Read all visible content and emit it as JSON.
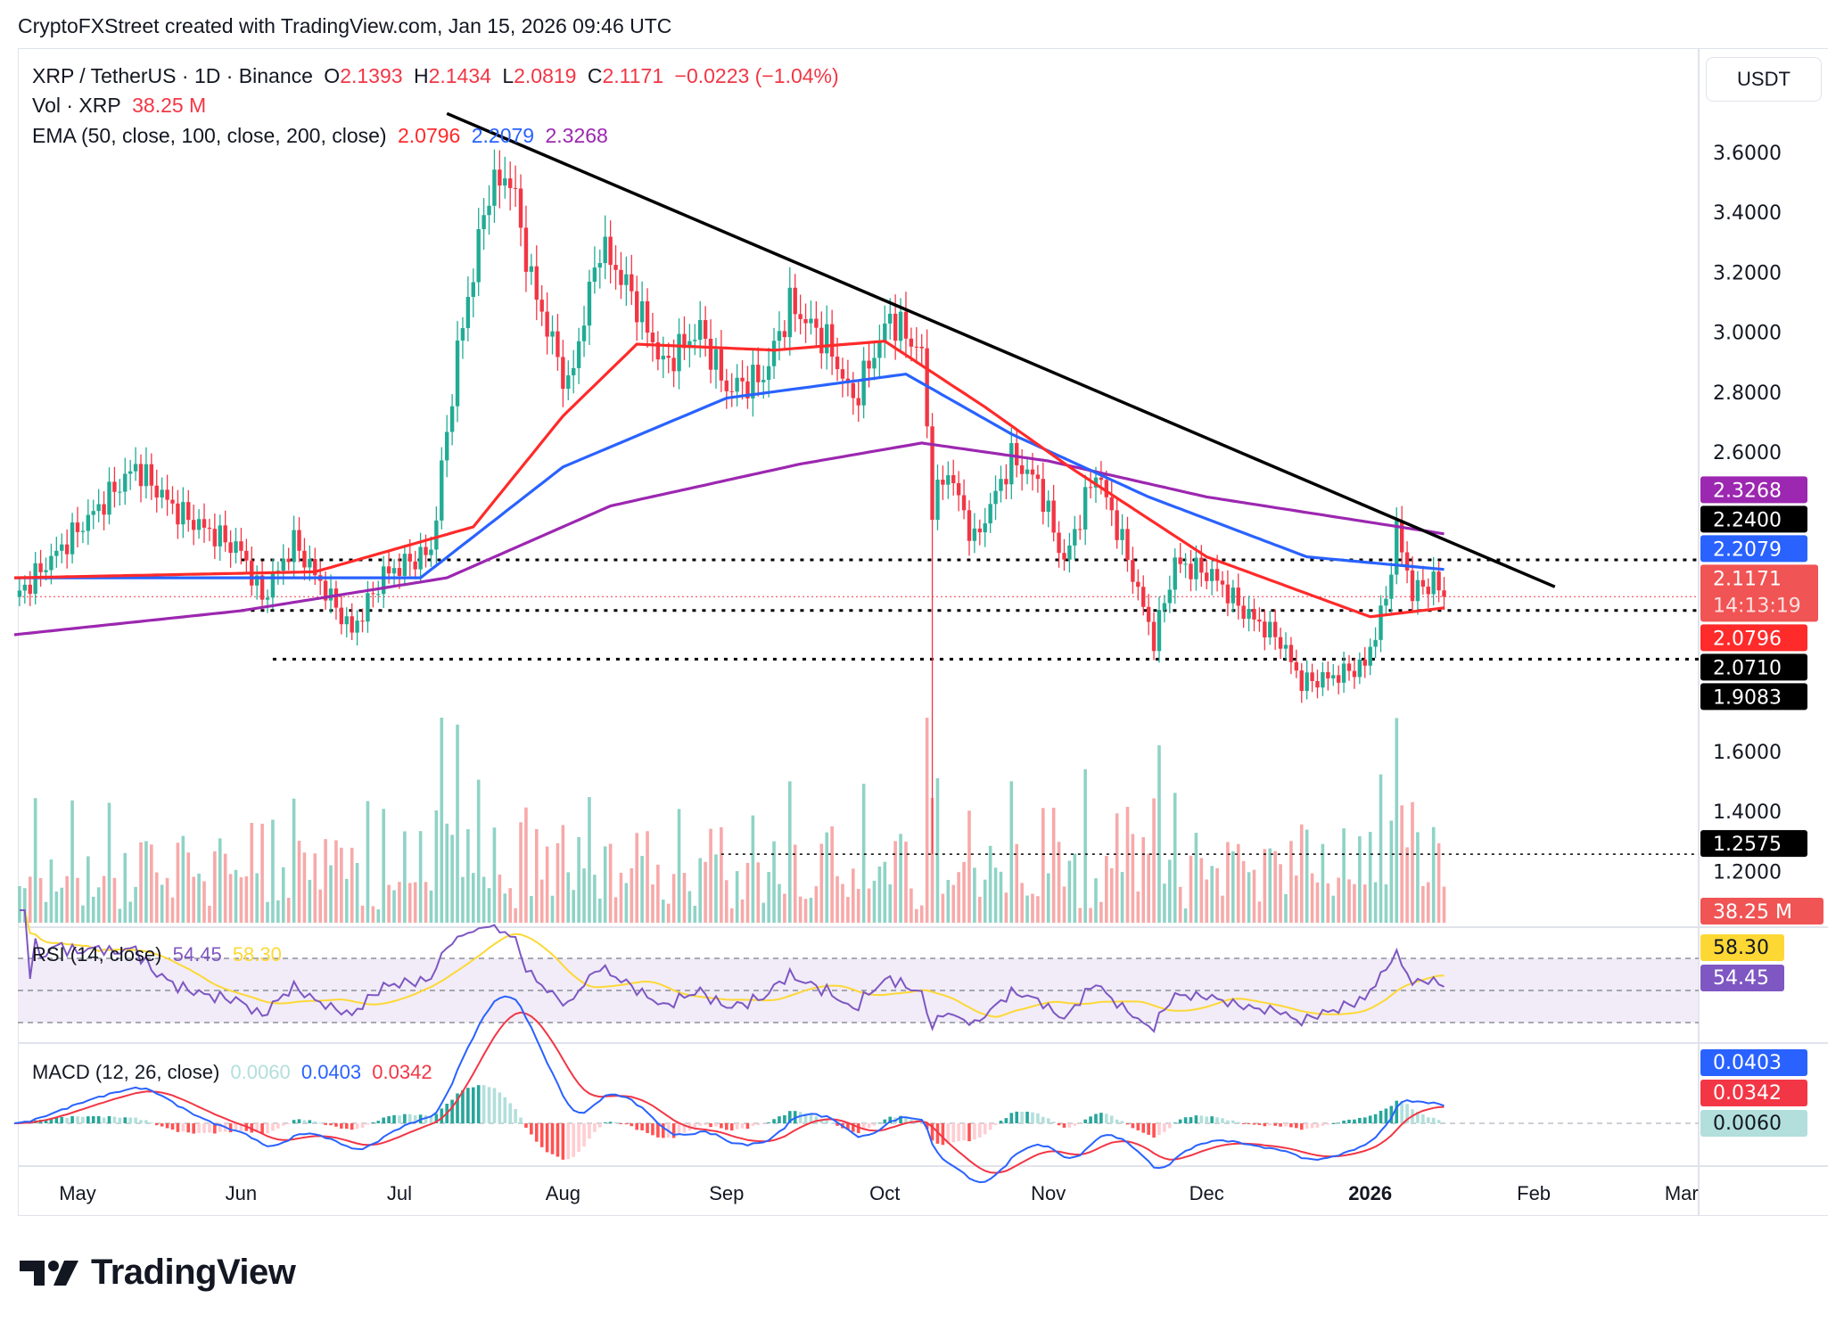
{
  "title": "CryptoFXStreet created with TradingView.com, Jan 15, 2026 09:46 UTC",
  "legend": {
    "symbol": "XRP / TetherUS · 1D · Binance",
    "o_label": "O",
    "o": "2.1393",
    "h_label": "H",
    "h": "2.1434",
    "l_label": "L",
    "l": "2.0819",
    "c_label": "C",
    "c": "2.1171",
    "change": "−0.0223 (−1.04%)",
    "vol_label": "Vol · XRP",
    "vol": "38.25 M",
    "ema_label": "EMA (50, close, 100, close, 200, close)",
    "ema50": "2.0796",
    "ema100": "2.2079",
    "ema200": "2.3268"
  },
  "currency": "USDT",
  "brand": "TradingView",
  "colors": {
    "up": "#22ab94",
    "down": "#f23645",
    "ema50": "#ff2a2a",
    "ema100": "#2962ff",
    "ema200": "#9c27b0",
    "rsi": "#7e57c2",
    "rsi_ma": "#fdd835",
    "macd": "#2962ff",
    "signal": "#f23645"
  },
  "chart_data": [
    {
      "type": "candlestick",
      "title": "XRP / TetherUS · 1D · Binance",
      "ylim": [
        1.05,
        3.9
      ],
      "yticks": [
        "3.6000",
        "3.4000",
        "3.2000",
        "3.0000",
        "2.8000",
        "2.6000",
        "1.6000",
        "1.4000",
        "1.2000"
      ],
      "xticks": [
        "May",
        "Jun",
        "Jul",
        "Aug",
        "Sep",
        "Oct",
        "Nov",
        "Dec",
        "2026",
        "Feb",
        "Mar"
      ],
      "close_path": [
        [
          "2025-04-19",
          2.11
        ],
        [
          "2025-05-12",
          2.55
        ],
        [
          "2025-05-20",
          2.4
        ],
        [
          "2025-06-01",
          2.27
        ],
        [
          "2025-06-05",
          2.11
        ],
        [
          "2025-06-11",
          2.3
        ],
        [
          "2025-06-22",
          2.0
        ],
        [
          "2025-06-28",
          2.19
        ],
        [
          "2025-07-07",
          2.27
        ],
        [
          "2025-07-12",
          2.93
        ],
        [
          "2025-07-18",
          3.48
        ],
        [
          "2025-07-22",
          3.52
        ],
        [
          "2025-07-26",
          3.17
        ],
        [
          "2025-08-02",
          2.81
        ],
        [
          "2025-08-08",
          3.29
        ],
        [
          "2025-08-14",
          3.13
        ],
        [
          "2025-08-20",
          2.89
        ],
        [
          "2025-08-27",
          3.01
        ],
        [
          "2025-09-01",
          2.81
        ],
        [
          "2025-09-08",
          2.85
        ],
        [
          "2025-09-13",
          3.09
        ],
        [
          "2025-09-20",
          2.97
        ],
        [
          "2025-09-25",
          2.77
        ],
        [
          "2025-10-02",
          3.05
        ],
        [
          "2025-10-08",
          2.93
        ],
        [
          "2025-10-10",
          2.42
        ],
        [
          "2025-10-13",
          2.54
        ],
        [
          "2025-10-18",
          2.3
        ],
        [
          "2025-10-25",
          2.58
        ],
        [
          "2025-10-30",
          2.5
        ],
        [
          "2025-11-04",
          2.23
        ],
        [
          "2025-11-10",
          2.54
        ],
        [
          "2025-11-15",
          2.3
        ],
        [
          "2025-11-21",
          1.97
        ],
        [
          "2025-11-25",
          2.23
        ],
        [
          "2025-12-02",
          2.19
        ],
        [
          "2025-12-08",
          2.07
        ],
        [
          "2025-12-15",
          1.97
        ],
        [
          "2025-12-19",
          1.83
        ],
        [
          "2025-12-25",
          1.85
        ],
        [
          "2025-12-31",
          1.89
        ],
        [
          "2026-01-04",
          2.11
        ],
        [
          "2026-01-06",
          2.34
        ],
        [
          "2026-01-09",
          2.13
        ],
        [
          "2026-01-13",
          2.17
        ],
        [
          "2026-01-15",
          2.1171
        ]
      ],
      "flash_low": {
        "date": "2025-10-10",
        "low": 1.2575
      },
      "ema50_path": [
        [
          "2025-04-19",
          2.18
        ],
        [
          "2025-06-15",
          2.2
        ],
        [
          "2025-07-15",
          2.35
        ],
        [
          "2025-08-01",
          2.72
        ],
        [
          "2025-08-15",
          2.96
        ],
        [
          "2025-09-10",
          2.94
        ],
        [
          "2025-10-01",
          2.97
        ],
        [
          "2025-10-20",
          2.75
        ],
        [
          "2025-11-05",
          2.55
        ],
        [
          "2025-12-01",
          2.25
        ],
        [
          "2026-01-01",
          2.05
        ],
        [
          "2026-01-15",
          2.0796
        ]
      ],
      "ema100_path": [
        [
          "2025-04-19",
          2.18
        ],
        [
          "2025-07-05",
          2.18
        ],
        [
          "2025-08-01",
          2.55
        ],
        [
          "2025-09-01",
          2.78
        ],
        [
          "2025-10-05",
          2.86
        ],
        [
          "2025-10-25",
          2.66
        ],
        [
          "2025-11-20",
          2.45
        ],
        [
          "2025-12-20",
          2.25
        ],
        [
          "2026-01-15",
          2.2079
        ]
      ],
      "ema200_path": [
        [
          "2025-04-19",
          1.99
        ],
        [
          "2025-06-01",
          2.07
        ],
        [
          "2025-07-10",
          2.18
        ],
        [
          "2025-08-10",
          2.42
        ],
        [
          "2025-09-15",
          2.56
        ],
        [
          "2025-10-08",
          2.63
        ],
        [
          "2025-11-01",
          2.57
        ],
        [
          "2025-12-01",
          2.45
        ],
        [
          "2026-01-15",
          2.3268
        ]
      ],
      "trendline": [
        [
          "2025-07-10",
          3.73
        ],
        [
          "2026-02-05",
          2.15
        ]
      ],
      "levels": [
        {
          "value": 2.24,
          "label": "2.2400",
          "from": "2025-06-01"
        },
        {
          "value": 2.071,
          "label": "2.0710",
          "from": "2025-06-01"
        },
        {
          "value": 1.9083,
          "label": "1.9083",
          "from": "2025-06-07"
        },
        {
          "value": 1.2575,
          "label": "1.2575",
          "from": "2025-08-31"
        }
      ],
      "badges": [
        {
          "label": "2.3268",
          "value": 2.3268,
          "color": "#9c27b0"
        },
        {
          "label": "2.2400",
          "value": 2.24,
          "color": "#000000"
        },
        {
          "label": "2.2079",
          "value": 2.2079,
          "color": "#2962ff"
        },
        {
          "label": "2.1171",
          "sub": "14:13:19",
          "value": 2.1171,
          "color": "#f05454"
        },
        {
          "label": "2.0796",
          "value": 2.0796,
          "color": "#ff2a2a"
        },
        {
          "label": "2.0710",
          "value": 2.071,
          "color": "#000000"
        },
        {
          "label": "1.9083",
          "value": 1.9083,
          "color": "#000000"
        },
        {
          "label": "1.2575",
          "value": 1.2575,
          "color": "#000000"
        }
      ],
      "volume_last": {
        "label": "38.25 M",
        "color": "#f05454"
      }
    },
    {
      "type": "line",
      "title": "RSI (14, close)",
      "rsi": "54.45",
      "rsi_ma": "58.30",
      "bands": [
        70,
        50,
        30
      ],
      "ylim": [
        20,
        85
      ]
    },
    {
      "type": "line",
      "title": "MACD (12, 26, close)",
      "hist": "0.0060",
      "macd": "0.0403",
      "signal": "0.0342"
    }
  ]
}
